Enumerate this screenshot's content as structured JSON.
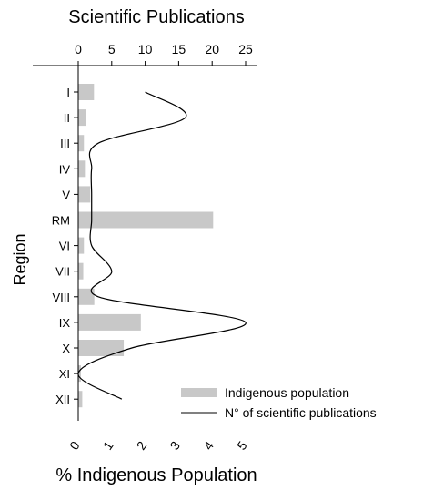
{
  "chart_data": {
    "type": "bar",
    "orientation": "horizontal",
    "categories": [
      "I",
      "II",
      "III",
      "IV",
      "V",
      "RM",
      "VI",
      "VII",
      "VIII",
      "IX",
      "X",
      "XI",
      "XII"
    ],
    "ylabel": "Region",
    "series": [
      {
        "name": "Indigenous population",
        "kind": "bar",
        "axis": "bottom",
        "color": "#c8c8c8",
        "values": [
          0.47,
          0.23,
          0.17,
          0.2,
          0.36,
          4.03,
          0.17,
          0.15,
          0.48,
          1.87,
          1.36,
          0.08,
          0.12
        ]
      },
      {
        "name": "N° of scientific publications",
        "kind": "line",
        "axis": "top",
        "color": "#000000",
        "values": [
          10,
          16,
          3,
          2,
          2,
          2,
          2,
          5,
          3,
          25,
          8,
          0,
          6.5
        ]
      }
    ],
    "bottom_axis": {
      "label": "% Indigenous Population",
      "range": [
        0,
        5
      ],
      "ticks": [
        "0",
        "1",
        "2",
        "3",
        "4",
        "5"
      ]
    },
    "top_axis": {
      "label": "Scientific Publications",
      "range": [
        0,
        25
      ],
      "ticks": [
        "0",
        "5",
        "10",
        "15",
        "20",
        "25"
      ]
    },
    "legend_position": "bottom-right",
    "grid": false
  }
}
